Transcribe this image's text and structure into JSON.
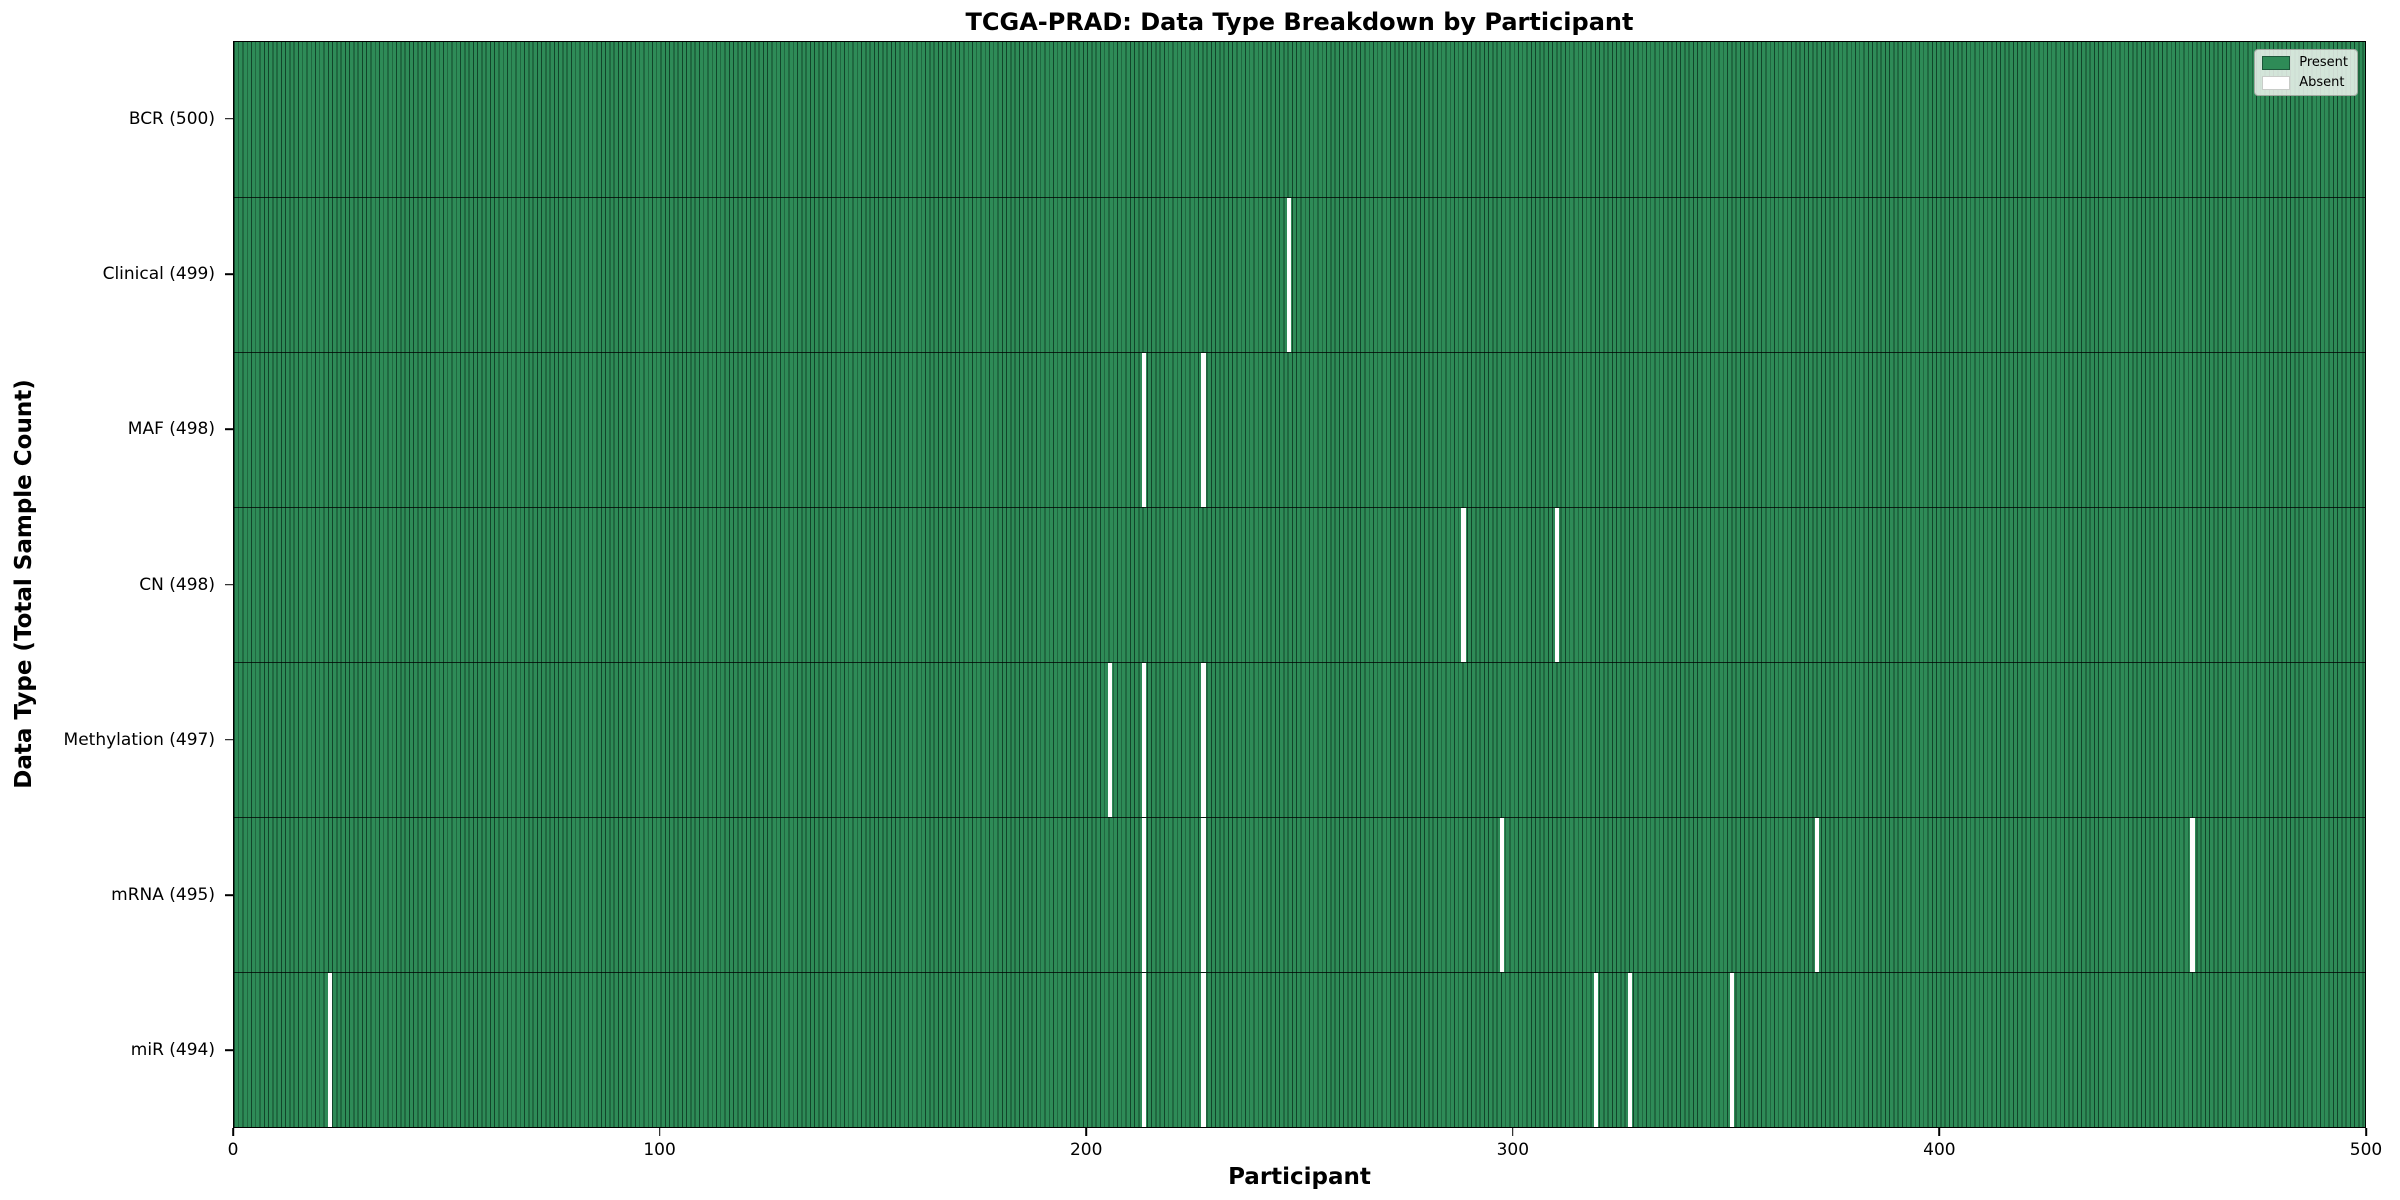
{
  "title": "TCGA-PRAD: Data Type Breakdown by Participant",
  "axes": {
    "xlabel": "Participant",
    "ylabel": "Data Type (Total Sample Count)"
  },
  "legend": {
    "present_label": "Present",
    "absent_label": "Absent"
  },
  "colors": {
    "present_fill": "#2e8b57",
    "present_stripe_edge": "#11452a",
    "absent_fill": "#ffffff"
  },
  "chart_data": {
    "type": "heatmap",
    "title": "TCGA-PRAD: Data Type Breakdown by Participant",
    "xlabel": "Participant",
    "ylabel": "Data Type (Total Sample Count)",
    "x_range": [
      0,
      500
    ],
    "x_ticks": [
      0,
      100,
      200,
      300,
      400,
      500
    ],
    "n_participants": 500,
    "grid": false,
    "legend_position": "upper right",
    "legend_entries": [
      "Present",
      "Absent"
    ],
    "rows": [
      {
        "label": "BCR (500)",
        "total": 500,
        "absent_participants": []
      },
      {
        "label": "Clinical (499)",
        "total": 499,
        "absent_participants": [
          247
        ]
      },
      {
        "label": "MAF (498)",
        "total": 498,
        "absent_participants": [
          213,
          227
        ]
      },
      {
        "label": "CN (498)",
        "total": 498,
        "absent_participants": [
          288,
          310
        ]
      },
      {
        "label": "Methylation (497)",
        "total": 497,
        "absent_participants": [
          205,
          213,
          227
        ]
      },
      {
        "label": "mRNA (495)",
        "total": 495,
        "absent_participants": [
          213,
          227,
          297,
          371,
          459
        ]
      },
      {
        "label": "miR (494)",
        "total": 494,
        "absent_participants": [
          22,
          213,
          227,
          319,
          327,
          351
        ]
      }
    ]
  }
}
